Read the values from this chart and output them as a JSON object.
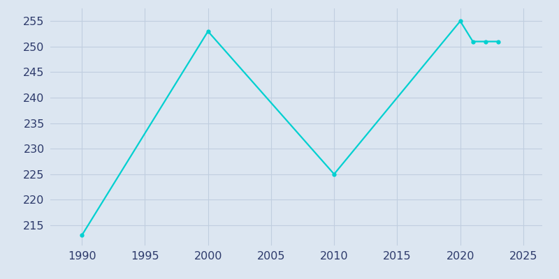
{
  "years": [
    1990,
    2000,
    2010,
    2020,
    2021,
    2022,
    2023
  ],
  "population": [
    213,
    253,
    225,
    255,
    251,
    251,
    251
  ],
  "line_color": "#00d0d0",
  "marker_color": "#00d0d0",
  "plot_bg_color": "#dce6f1",
  "outer_bg_color": "#dce6f1",
  "tick_label_color": "#2d3a6b",
  "yticks": [
    215,
    220,
    225,
    230,
    235,
    240,
    245,
    250,
    255
  ],
  "xticks": [
    1990,
    1995,
    2000,
    2005,
    2010,
    2015,
    2020,
    2025
  ],
  "ylim_min": 211,
  "ylim_max": 257.5,
  "xlim_min": 1987.5,
  "xlim_max": 2026.5,
  "grid_color": "#c0cedf",
  "line_width": 1.6,
  "marker_size": 3.5,
  "tick_fontsize": 11.5
}
